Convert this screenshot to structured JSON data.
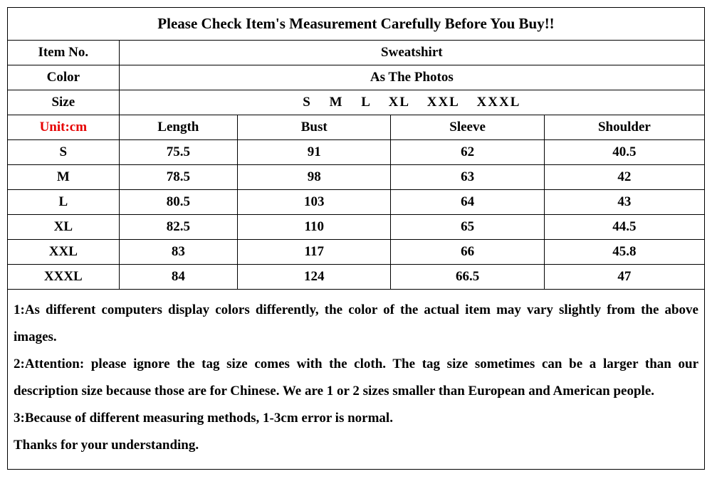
{
  "title": "Please Check Item's Measurement Carefully Before You Buy!!",
  "header_rows": [
    {
      "label": "Item No.",
      "value": "Sweatshirt"
    },
    {
      "label": "Color",
      "value": "As The Photos"
    },
    {
      "label": "Size",
      "value": "S   M   L   XL   XXL   XXXL"
    }
  ],
  "unit_label": "Unit:cm",
  "columns": [
    "Length",
    "Bust",
    "Sleeve",
    "Shoulder"
  ],
  "rows": [
    {
      "size": "S",
      "values": [
        "75.5",
        "91",
        "62",
        "40.5"
      ]
    },
    {
      "size": "M",
      "values": [
        "78.5",
        "98",
        "63",
        "42"
      ]
    },
    {
      "size": "L",
      "values": [
        "80.5",
        "103",
        "64",
        "43"
      ]
    },
    {
      "size": "XL",
      "values": [
        "82.5",
        "110",
        "65",
        "44.5"
      ]
    },
    {
      "size": "XXL",
      "values": [
        "83",
        "117",
        "66",
        "45.8"
      ]
    },
    {
      "size": "XXXL",
      "values": [
        "84",
        "124",
        "66.5",
        "47"
      ]
    }
  ],
  "notes": [
    "1:As different computers display colors differently, the color of the actual item may vary slightly from the above images.",
    "2:Attention: please ignore the tag size comes with the cloth. The tag size sometimes can be a larger than our description size because those are for Chinese. We are 1 or 2 sizes smaller than European and American people.",
    "3:Because of different measuring methods, 1-3cm error is normal.",
    "Thanks for your understanding."
  ],
  "style": {
    "background_color": "#ffffff",
    "border_color": "#000000",
    "text_color": "#000000",
    "unit_color": "#e60000",
    "font_family": "Georgia, 'Times New Roman', serif",
    "title_fontsize": 21,
    "cell_fontsize": 19,
    "notes_fontsize": 19,
    "notes_line_height": 2.0,
    "col_widths_pct": [
      16,
      17,
      22,
      22,
      23
    ]
  }
}
